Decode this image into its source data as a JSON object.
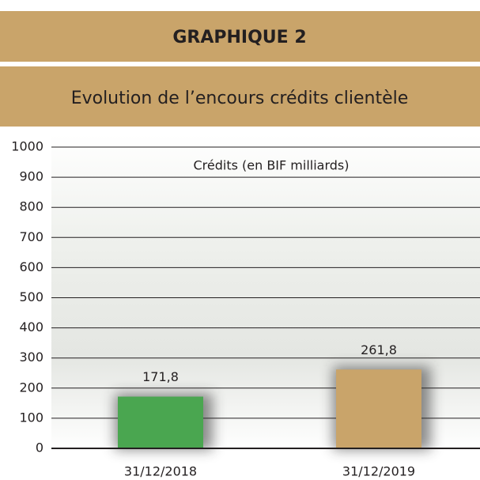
{
  "chart_data": {
    "type": "bar",
    "title": "GRAPHIQUE 2",
    "subtitle": "Evolution de l’encours crédits clientèle",
    "annotation": "Crédits (en BIF milliards)",
    "categories": [
      "31/12/2018",
      "31/12/2019"
    ],
    "values": [
      171.8,
      261.8
    ],
    "value_labels": [
      "171,8",
      "261,8"
    ],
    "colors": [
      "#4aa650",
      "#c9a46a"
    ],
    "ylim": [
      0,
      1000
    ],
    "yticks": [
      0,
      100,
      200,
      300,
      400,
      500,
      600,
      700,
      800,
      900,
      1000
    ],
    "grid": true
  }
}
